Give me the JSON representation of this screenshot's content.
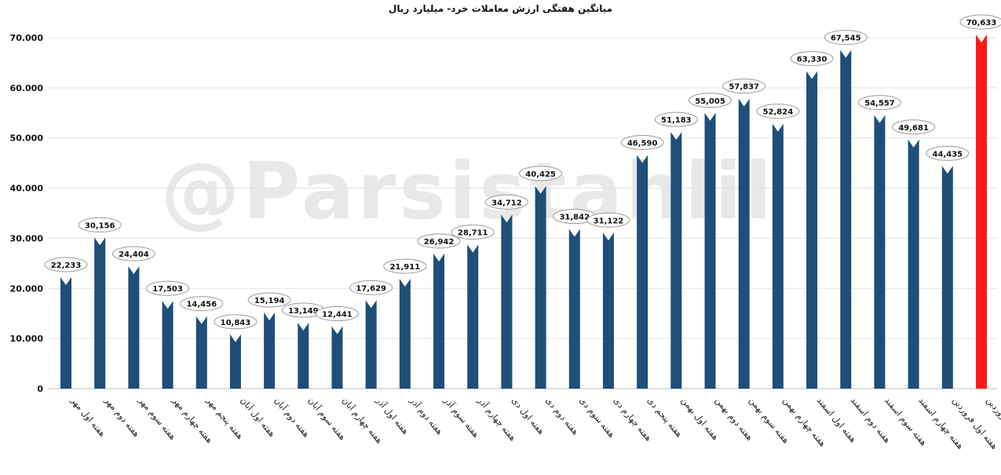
{
  "watermark": "@Parsistahlil",
  "chart_data": {
    "type": "bar",
    "title": "میانگین هفتگی ارزش معاملات خرد- میلیارد ریال",
    "xlabel": "",
    "ylabel": "",
    "ylim": [
      0,
      70000
    ],
    "yticks": [
      0,
      10000,
      20000,
      30000,
      40000,
      50000,
      60000,
      70000
    ],
    "ytick_labels": [
      "0",
      "10.000",
      "20.000",
      "30.000",
      "40.000",
      "50.000",
      "60.000",
      "70.000"
    ],
    "grid": true,
    "legend": "none",
    "bar_color": "#1f4e79",
    "highlight_color": "#ff1a1a",
    "categories": [
      "هفته اول مهر",
      "هفته دوم مهر",
      "هفته سوم مهر",
      "هفته چهارم مهر",
      "هفته پنجم مهر",
      "هفته اول آبان",
      "هفته دوم آبان",
      "هفته سوم آبان",
      "هفته چهارم آبان",
      "هفته اول آذر",
      "هفته دوم آذر",
      "هفته سوم آذر",
      "هفته چهارم آذر",
      "هفته اول دی",
      "هفته دوم دی",
      "هفته سوم دی",
      "هفته چهارم دی",
      "هفته پنجم دی",
      "هفته اول بهمن",
      "هفته دوم بهمن",
      "هفته سوم بهمن",
      "هفته چهارم بهمن",
      "هفته اول اسفند",
      "هفته دوم اسفند",
      "هفته سوم اسفند",
      "هفته چهارم اسفند",
      "هفته اول فروردین",
      "هفته دوم فروردین"
    ],
    "values": [
      22233,
      30156,
      24404,
      17503,
      14456,
      10843,
      15194,
      13149,
      12441,
      17629,
      21911,
      26942,
      28711,
      34712,
      40425,
      31842,
      31122,
      46590,
      51183,
      55005,
      57837,
      52824,
      63330,
      67545,
      54557,
      49681,
      44435,
      70633
    ],
    "value_labels": [
      "22,233",
      "30,156",
      "24,404",
      "17,503",
      "14,456",
      "10,843",
      "15,194",
      "13,149",
      "12,441",
      "17,629",
      "21,911",
      "26,942",
      "28,711",
      "34,712",
      "40,425",
      "31,842",
      "31,122",
      "46,590",
      "51,183",
      "55,005",
      "57,837",
      "52,824",
      "63,330",
      "67,545",
      "54,557",
      "49,681",
      "44,435",
      "70,633"
    ],
    "highlight_index": 27
  }
}
